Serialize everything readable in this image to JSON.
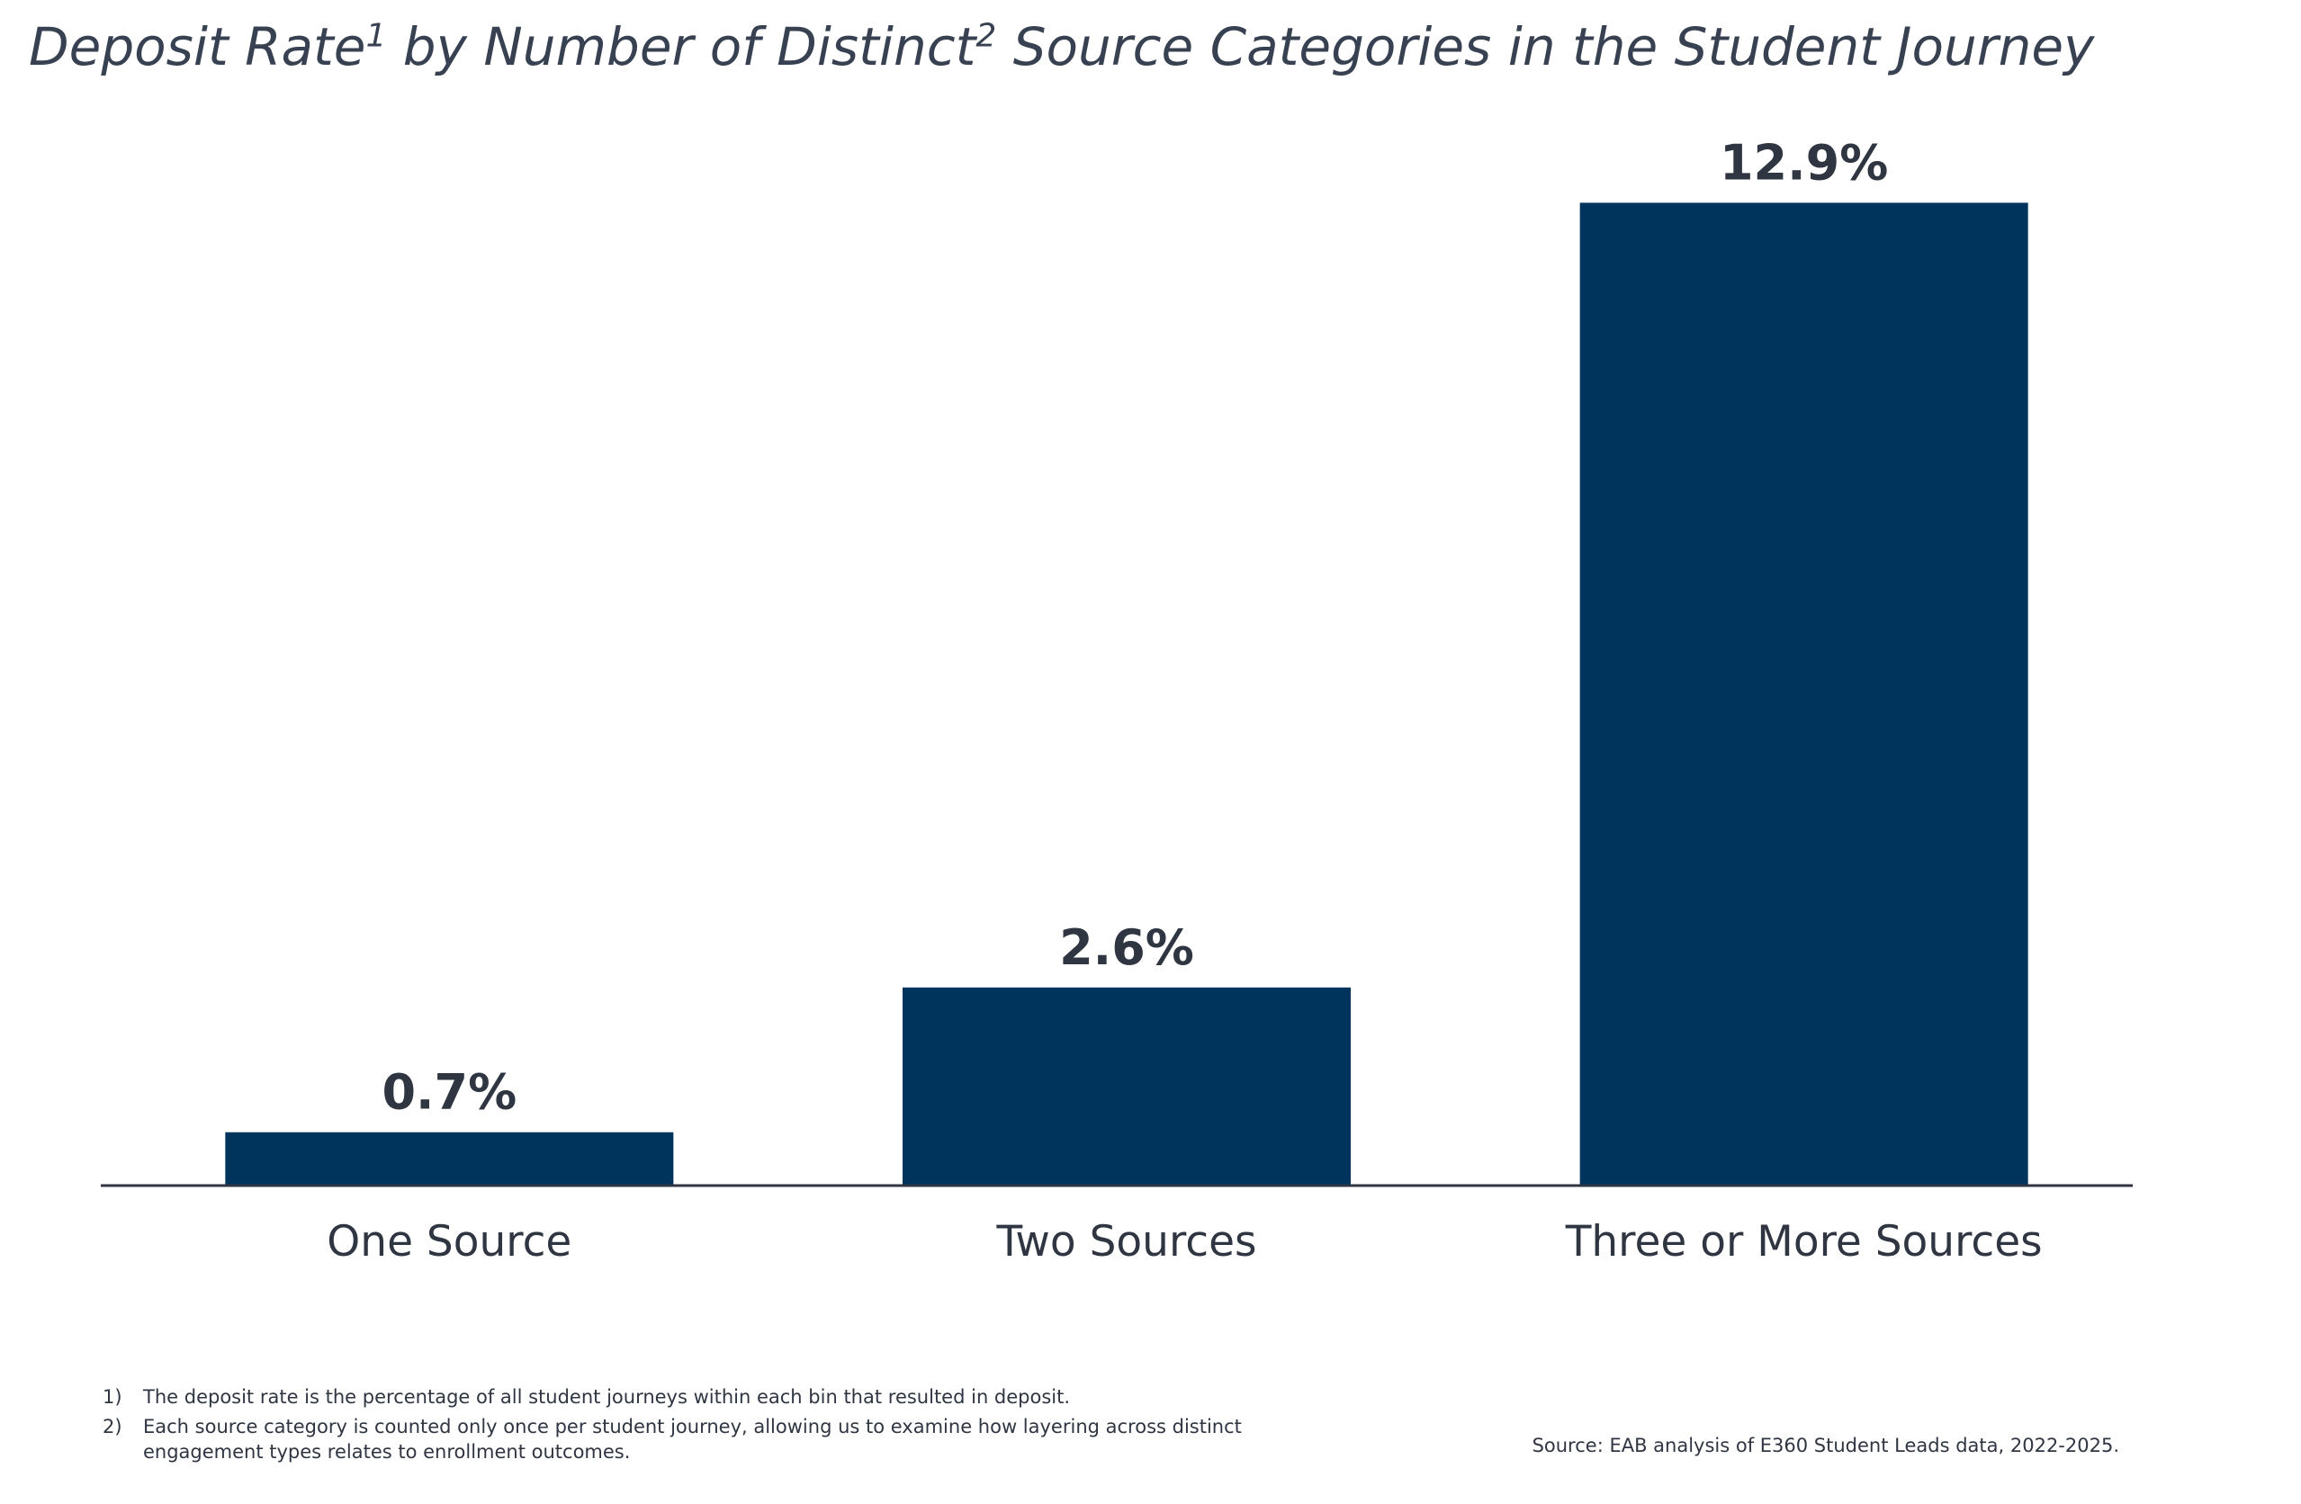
{
  "title": {
    "part1": "Deposit Rate",
    "sup1": "1",
    "part2": " by Number of Distinct",
    "sup2": "2",
    "part3": " Source Categories in the Student Journey"
  },
  "chart_data": {
    "type": "bar",
    "title": "Deposit Rate¹ by Number of Distinct² Source Categories in the Student Journey",
    "categories": [
      "One Source",
      "Two Sources",
      "Three or More Sources"
    ],
    "values": [
      0.7,
      2.6,
      12.9
    ],
    "value_labels": [
      "0.7%",
      "2.6%",
      "12.9%"
    ],
    "xlabel": "",
    "ylabel": "",
    "ylim": [
      0,
      13.2
    ],
    "grid": false,
    "bar_color": "#00345d"
  },
  "footnotes": [
    {
      "num": "1)",
      "text": "The deposit rate is the percentage of all student journeys within each bin that resulted in deposit."
    },
    {
      "num": "2)",
      "text": "Each source category is counted only once per student journey, allowing us to examine how layering across distinct engagement types relates to enrollment outcomes."
    }
  ],
  "source": "Source: EAB analysis of E360 Student Leads data, 2022-2025."
}
